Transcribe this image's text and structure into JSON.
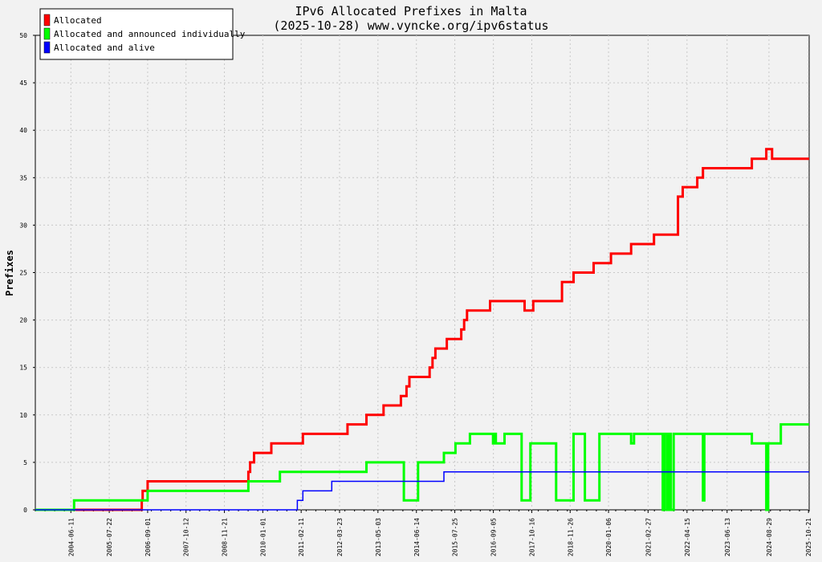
{
  "chart_data": {
    "type": "line",
    "title": "IPv6 Allocated Prefixes in Malta",
    "subtitle": "(2025-10-28) www.vyncke.org/ipv6status",
    "ylabel": "Prefixes",
    "xlabel": "",
    "ylim": [
      0,
      50
    ],
    "yticks": [
      "0",
      "5",
      "10",
      "15",
      "20",
      "25",
      "30",
      "35",
      "40",
      "45",
      "50"
    ],
    "xlim": [
      "2003-06-01",
      "2025-10-28"
    ],
    "xticks": [
      "2004-06-11",
      "2005-07-22",
      "2006-09-01",
      "2007-10-12",
      "2008-11-21",
      "2010-01-01",
      "2011-02-11",
      "2012-03-23",
      "2013-05-03",
      "2014-06-14",
      "2015-07-25",
      "2016-09-05",
      "2017-10-16",
      "2018-11-26",
      "2020-01-06",
      "2021-02-27",
      "2022-04-15",
      "2023-06-13",
      "2024-08-29",
      "2025-10-21"
    ],
    "grid": true,
    "legend_position": "top-left",
    "series": [
      {
        "name": "Allocated",
        "color": "#ff0000",
        "points": [
          [
            "2003-06-01",
            0
          ],
          [
            "2006-07-01",
            0
          ],
          [
            "2006-07-01",
            1
          ],
          [
            "2006-07-10",
            1
          ],
          [
            "2006-07-10",
            2
          ],
          [
            "2006-09-01",
            2
          ],
          [
            "2006-09-01",
            3
          ],
          [
            "2009-08-01",
            3
          ],
          [
            "2009-08-01",
            4
          ],
          [
            "2009-08-20",
            4
          ],
          [
            "2009-08-20",
            5
          ],
          [
            "2009-10-01",
            5
          ],
          [
            "2009-10-01",
            6
          ],
          [
            "2010-04-01",
            6
          ],
          [
            "2010-04-01",
            7
          ],
          [
            "2011-03-01",
            7
          ],
          [
            "2011-03-01",
            8
          ],
          [
            "2012-06-15",
            8
          ],
          [
            "2012-06-15",
            9
          ],
          [
            "2013-01-01",
            9
          ],
          [
            "2013-01-01",
            10
          ],
          [
            "2013-07-01",
            10
          ],
          [
            "2013-07-01",
            11
          ],
          [
            "2014-01-01",
            11
          ],
          [
            "2014-01-01",
            12
          ],
          [
            "2014-03-01",
            12
          ],
          [
            "2014-03-01",
            13
          ],
          [
            "2014-04-01",
            13
          ],
          [
            "2014-04-01",
            14
          ],
          [
            "2014-11-01",
            14
          ],
          [
            "2014-11-01",
            15
          ],
          [
            "2014-12-01",
            15
          ],
          [
            "2014-12-01",
            16
          ],
          [
            "2015-01-01",
            16
          ],
          [
            "2015-01-01",
            17
          ],
          [
            "2015-05-01",
            17
          ],
          [
            "2015-05-01",
            18
          ],
          [
            "2015-10-01",
            18
          ],
          [
            "2015-10-01",
            19
          ],
          [
            "2015-11-01",
            19
          ],
          [
            "2015-11-01",
            20
          ],
          [
            "2015-12-01",
            20
          ],
          [
            "2015-12-01",
            21
          ],
          [
            "2016-08-01",
            21
          ],
          [
            "2016-08-01",
            22
          ],
          [
            "2017-08-01",
            22
          ],
          [
            "2017-08-01",
            21
          ],
          [
            "2017-11-01",
            21
          ],
          [
            "2017-11-01",
            22
          ],
          [
            "2018-09-01",
            22
          ],
          [
            "2018-09-01",
            24
          ],
          [
            "2019-01-01",
            24
          ],
          [
            "2019-01-01",
            25
          ],
          [
            "2019-08-01",
            25
          ],
          [
            "2019-08-01",
            26
          ],
          [
            "2020-02-01",
            26
          ],
          [
            "2020-02-01",
            27
          ],
          [
            "2020-09-01",
            27
          ],
          [
            "2020-09-01",
            28
          ],
          [
            "2021-05-01",
            28
          ],
          [
            "2021-05-01",
            29
          ],
          [
            "2022-01-10",
            29
          ],
          [
            "2022-01-10",
            33
          ],
          [
            "2022-03-01",
            33
          ],
          [
            "2022-03-01",
            34
          ],
          [
            "2022-08-01",
            34
          ],
          [
            "2022-08-01",
            35
          ],
          [
            "2022-10-01",
            35
          ],
          [
            "2022-10-01",
            36
          ],
          [
            "2024-03-01",
            36
          ],
          [
            "2024-03-01",
            37
          ],
          [
            "2024-08-01",
            37
          ],
          [
            "2024-08-01",
            38
          ],
          [
            "2024-10-01",
            38
          ],
          [
            "2024-10-01",
            37
          ],
          [
            "2025-10-28",
            37
          ]
        ]
      },
      {
        "name": "Allocated and announced individually",
        "color": "#00ff00",
        "points": [
          [
            "2003-06-01",
            0
          ],
          [
            "2004-07-15",
            0
          ],
          [
            "2004-07-15",
            1
          ],
          [
            "2006-09-01",
            1
          ],
          [
            "2006-09-01",
            2
          ],
          [
            "2009-08-01",
            2
          ],
          [
            "2009-08-01",
            3
          ],
          [
            "2010-07-01",
            3
          ],
          [
            "2010-07-01",
            4
          ],
          [
            "2013-01-01",
            4
          ],
          [
            "2013-01-01",
            5
          ],
          [
            "2014-02-01",
            5
          ],
          [
            "2014-02-01",
            1
          ],
          [
            "2014-07-01",
            1
          ],
          [
            "2014-07-01",
            5
          ],
          [
            "2015-04-01",
            5
          ],
          [
            "2015-04-01",
            6
          ],
          [
            "2015-08-01",
            6
          ],
          [
            "2015-08-01",
            7
          ],
          [
            "2016-01-01",
            7
          ],
          [
            "2016-01-01",
            8
          ],
          [
            "2016-09-01",
            8
          ],
          [
            "2016-09-01",
            7
          ],
          [
            "2016-09-20",
            7
          ],
          [
            "2016-09-20",
            8
          ],
          [
            "2016-10-01",
            8
          ],
          [
            "2016-10-01",
            7
          ],
          [
            "2017-01-01",
            7
          ],
          [
            "2017-01-01",
            8
          ],
          [
            "2017-07-01",
            8
          ],
          [
            "2017-07-01",
            1
          ],
          [
            "2017-10-01",
            1
          ],
          [
            "2017-10-01",
            7
          ],
          [
            "2018-07-01",
            7
          ],
          [
            "2018-07-01",
            1
          ],
          [
            "2019-01-01",
            1
          ],
          [
            "2019-01-01",
            8
          ],
          [
            "2019-05-01",
            8
          ],
          [
            "2019-05-01",
            1
          ],
          [
            "2019-10-01",
            1
          ],
          [
            "2019-10-01",
            8
          ],
          [
            "2020-09-01",
            8
          ],
          [
            "2020-09-01",
            7
          ],
          [
            "2020-10-01",
            7
          ],
          [
            "2020-10-01",
            8
          ],
          [
            "2021-08-01",
            8
          ],
          [
            "2021-08-01",
            0
          ],
          [
            "2021-08-20",
            0
          ],
          [
            "2021-08-20",
            8
          ],
          [
            "2021-09-15",
            8
          ],
          [
            "2021-09-15",
            0
          ],
          [
            "2021-10-05",
            0
          ],
          [
            "2021-10-05",
            8
          ],
          [
            "2021-10-25",
            8
          ],
          [
            "2021-10-25",
            0
          ],
          [
            "2021-11-25",
            0
          ],
          [
            "2021-11-25",
            8
          ],
          [
            "2022-10-01",
            8
          ],
          [
            "2022-10-01",
            1
          ],
          [
            "2022-10-15",
            1
          ],
          [
            "2022-10-15",
            8
          ],
          [
            "2024-03-01",
            8
          ],
          [
            "2024-03-01",
            7
          ],
          [
            "2024-08-01",
            7
          ],
          [
            "2024-08-01",
            0
          ],
          [
            "2024-08-20",
            0
          ],
          [
            "2024-08-20",
            7
          ],
          [
            "2025-01-01",
            7
          ],
          [
            "2025-01-01",
            9
          ],
          [
            "2025-10-28",
            9
          ]
        ]
      },
      {
        "name": "Allocated and alive",
        "color": "#0000ff",
        "points": [
          [
            "2003-06-01",
            0
          ],
          [
            "2011-01-01",
            0
          ],
          [
            "2011-01-01",
            1
          ],
          [
            "2011-03-01",
            1
          ],
          [
            "2011-03-01",
            2
          ],
          [
            "2012-01-01",
            2
          ],
          [
            "2012-01-01",
            3
          ],
          [
            "2015-04-01",
            3
          ],
          [
            "2015-04-01",
            4
          ],
          [
            "2025-10-28",
            4
          ]
        ]
      }
    ]
  }
}
